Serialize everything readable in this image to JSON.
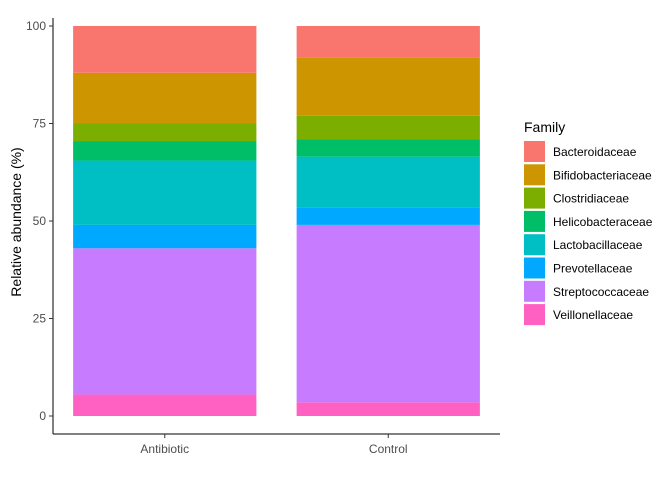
{
  "chart_data": {
    "type": "bar",
    "stacked": true,
    "xlabel": "",
    "ylabel": "Relative abundance (%)",
    "ylim": [
      0,
      100
    ],
    "yticks": [
      0,
      25,
      50,
      75,
      100
    ],
    "grid": false,
    "legend": {
      "title": "Family",
      "position": "right"
    },
    "categories": [
      "Antibiotic",
      "Control"
    ],
    "series": [
      {
        "name": "Veillonellaceae",
        "color": "#FF61C3",
        "values": [
          5.5,
          3.5
        ]
      },
      {
        "name": "Streptococcaceae",
        "color": "#C77CFF",
        "values": [
          37.5,
          45.5
        ]
      },
      {
        "name": "Prevotellaceae",
        "color": "#00A9FF",
        "values": [
          6.0,
          4.5
        ]
      },
      {
        "name": "Lactobacillaceae",
        "color": "#00BFC4",
        "values": [
          16.5,
          13.0
        ]
      },
      {
        "name": "Helicobacteraceae",
        "color": "#00BE67",
        "values": [
          5.0,
          4.5
        ]
      },
      {
        "name": "Clostridiaceae",
        "color": "#7CAE00",
        "values": [
          4.5,
          6.0
        ]
      },
      {
        "name": "Bifidobacteriaceae",
        "color": "#CD9600",
        "values": [
          13.0,
          15.0
        ]
      },
      {
        "name": "Bacteroidaceae",
        "color": "#F8766D",
        "values": [
          12.0,
          8.0
        ]
      }
    ]
  }
}
